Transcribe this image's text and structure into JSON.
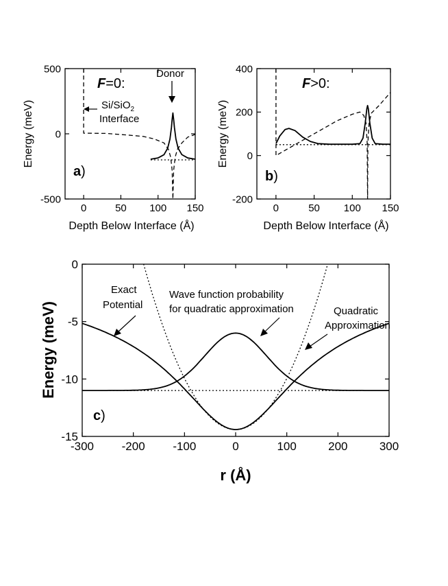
{
  "chart_data": [
    {
      "id": "a",
      "type": "line",
      "title_prefix": "F",
      "title_suffix": "=0:",
      "panel_letter": "a",
      "panel_paren": ")",
      "xlabel": "Depth Below Interface (Å)",
      "ylabel": "Energy (meV)",
      "xlim": [
        -25,
        150
      ],
      "ylim": [
        -500,
        500
      ],
      "xticks": [
        0,
        50,
        100,
        150
      ],
      "yticks": [
        -500,
        0,
        500
      ],
      "annotations": {
        "donor": "Donor",
        "interface_1": "Si/SiO",
        "interface_sub": "2",
        "interface_2": "Interface"
      },
      "series": [
        {
          "name": "potential",
          "style": "dashed",
          "points": [
            [
              0,
              500
            ],
            [
              0,
              5
            ],
            [
              30,
              3
            ],
            [
              60,
              -10
            ],
            [
              80,
              -20
            ],
            [
              95,
              -40
            ],
            [
              108,
              -70
            ],
            [
              114,
              -120
            ],
            [
              117,
              -180
            ],
            [
              119,
              -280
            ],
            [
              120,
              -500
            ],
            [
              121,
              -280
            ],
            [
              123,
              -180
            ],
            [
              126,
              -120
            ],
            [
              132,
              -70
            ],
            [
              140,
              -25
            ],
            [
              150,
              -5
            ]
          ]
        },
        {
          "name": "wavefunction",
          "style": "solid",
          "points": [
            [
              90,
              -195
            ],
            [
              100,
              -185
            ],
            [
              108,
              -160
            ],
            [
              113,
              -110
            ],
            [
              116,
              -40
            ],
            [
              118,
              50
            ],
            [
              119,
              110
            ],
            [
              120,
              160
            ],
            [
              121,
              110
            ],
            [
              122,
              50
            ],
            [
              124,
              -40
            ],
            [
              127,
              -110
            ],
            [
              132,
              -160
            ],
            [
              140,
              -185
            ],
            [
              150,
              -195
            ]
          ]
        },
        {
          "name": "energy_level",
          "style": "dotted",
          "points": [
            [
              90,
              -200
            ],
            [
              150,
              -200
            ]
          ]
        }
      ]
    },
    {
      "id": "b",
      "type": "line",
      "title_prefix": "F",
      "title_suffix": ">0:",
      "panel_letter": "b",
      "panel_paren": ")",
      "xlabel": "Depth Below Interface (Å)",
      "ylabel": "Energy (meV)",
      "xlim": [
        -25,
        150
      ],
      "ylim": [
        -200,
        400
      ],
      "xticks": [
        0,
        50,
        100,
        150
      ],
      "yticks": [
        -200,
        0,
        200,
        400
      ],
      "series": [
        {
          "name": "potential",
          "style": "dashed",
          "points": [
            [
              0,
              400
            ],
            [
              0,
              0
            ],
            [
              20,
              40
            ],
            [
              40,
              80
            ],
            [
              60,
              120
            ],
            [
              80,
              160
            ],
            [
              100,
              190
            ],
            [
              110,
              200
            ],
            [
              115,
              185
            ],
            [
              118,
              150
            ],
            [
              119.5,
              60
            ],
            [
              120,
              -200
            ],
            [
              120.5,
              60
            ],
            [
              122,
              150
            ],
            [
              125,
              195
            ],
            [
              135,
              230
            ],
            [
              150,
              290
            ]
          ]
        },
        {
          "name": "wavefunction",
          "style": "solid",
          "points": [
            [
              0,
              55
            ],
            [
              5,
              90
            ],
            [
              12,
              120
            ],
            [
              17,
              125
            ],
            [
              25,
              115
            ],
            [
              35,
              85
            ],
            [
              45,
              65
            ],
            [
              55,
              55
            ],
            [
              70,
              52
            ],
            [
              100,
              52
            ],
            [
              110,
              55
            ],
            [
              114,
              80
            ],
            [
              117,
              150
            ],
            [
              119,
              215
            ],
            [
              120,
              230
            ],
            [
              121,
              215
            ],
            [
              123,
              150
            ],
            [
              126,
              80
            ],
            [
              130,
              55
            ],
            [
              140,
              52
            ],
            [
              150,
              52
            ]
          ]
        },
        {
          "name": "energy_level",
          "style": "dotted",
          "points": [
            [
              0,
              50
            ],
            [
              150,
              50
            ]
          ]
        }
      ]
    },
    {
      "id": "c",
      "type": "line",
      "panel_letter": "c",
      "panel_paren": ")",
      "xlabel": "r (Å)",
      "ylabel": "Energy (meV)",
      "xlim": [
        -300,
        300
      ],
      "ylim": [
        -15,
        0
      ],
      "xticks": [
        -300,
        -200,
        -100,
        0,
        100,
        200,
        300
      ],
      "yticks": [
        -15,
        -10,
        -5,
        0
      ],
      "annotations": {
        "exact_1": "Exact",
        "exact_2": "Potential",
        "wave_1": "Wave function probability",
        "wave_2": "for quadratic approximation",
        "quad_1": "Quadratic",
        "quad_2": "Approximation"
      },
      "curves": {
        "exact": {
          "style": "solid",
          "formula": "-14.4/sqrt(1+(r/a)^2)",
          "a": 115
        },
        "quadratic": {
          "style": "dotted",
          "formula": "-14.4+k*r^2",
          "k": 0.000445
        },
        "wavefunction": {
          "style": "solid",
          "formula": "-11+5*exp(-(r/s)^2)",
          "s": 85
        },
        "energy_level": {
          "style": "dotted",
          "value": -11
        }
      }
    }
  ]
}
